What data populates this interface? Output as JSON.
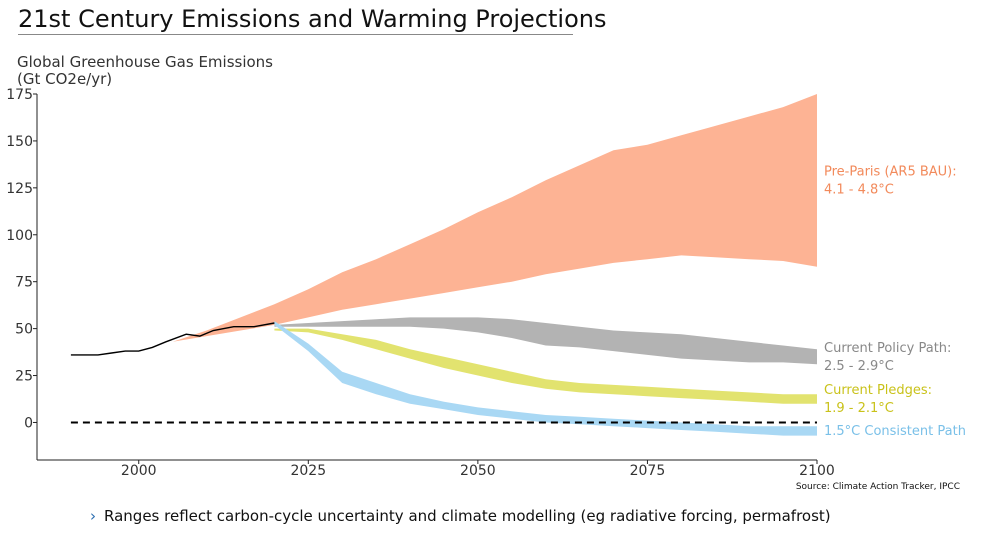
{
  "slide": {
    "title": "21st Century Emissions and Warming Projections",
    "bullet": "Ranges reflect carbon-cycle uncertainty and climate modelling (eg radiative forcing, permafrost)",
    "bullet_icon": "chevron-right-icon"
  },
  "chart_data": {
    "type": "area",
    "ylabel": [
      "Global Greenhouse Gas Emissions",
      "(Gt CO2e/yr)"
    ],
    "xlabel": "",
    "xlim": [
      1985,
      2100
    ],
    "ylim": [
      -20,
      175
    ],
    "xticks": [
      2000,
      2025,
      2050,
      2075,
      2100
    ],
    "yticks": [
      0,
      25,
      50,
      75,
      100,
      125,
      150,
      175
    ],
    "grid": false,
    "source": "Source: Climate Action Tracker, IPCC",
    "historical": {
      "color": "#000000",
      "x": [
        1990,
        1994,
        1996,
        1998,
        2000,
        2002,
        2004,
        2007,
        2009,
        2011,
        2014,
        2017,
        2020
      ],
      "y": [
        36,
        36,
        37,
        38,
        38,
        40,
        43,
        47,
        46,
        49,
        51,
        51,
        53
      ]
    },
    "zero_line": {
      "y": 0,
      "x_range": [
        1990,
        2100
      ],
      "style": "dashed"
    },
    "series": [
      {
        "name": "Pre-Paris (AR5 BAU):",
        "warming": "4.1 - 4.8°C",
        "color": "#fdb394",
        "label_color": "#f28a5b",
        "x": [
          2005,
          2010,
          2015,
          2020,
          2025,
          2030,
          2035,
          2040,
          2045,
          2050,
          2055,
          2060,
          2065,
          2070,
          2075,
          2080,
          2085,
          2090,
          2095,
          2100
        ],
        "low": [
          43,
          46,
          49,
          52,
          56,
          60,
          63,
          66,
          69,
          72,
          75,
          79,
          82,
          85,
          87,
          89,
          88,
          87,
          86,
          83
        ],
        "high": [
          43,
          49,
          56,
          63,
          71,
          80,
          87,
          95,
          103,
          112,
          120,
          129,
          137,
          145,
          148,
          153,
          158,
          163,
          168,
          175
        ]
      },
      {
        "name": "Current Policy Path:",
        "warming": "2.5 - 2.9°C",
        "color": "#b3b3b3",
        "label_color": "#888888",
        "x": [
          2020,
          2025,
          2030,
          2035,
          2040,
          2045,
          2050,
          2055,
          2060,
          2065,
          2070,
          2075,
          2080,
          2085,
          2090,
          2095,
          2100
        ],
        "low": [
          51,
          51,
          51,
          51,
          51,
          50,
          48,
          45,
          41,
          40,
          38,
          36,
          34,
          33,
          32,
          32,
          31
        ],
        "high": [
          52,
          53,
          54,
          55,
          56,
          56,
          56,
          55,
          53,
          51,
          49,
          48,
          47,
          45,
          43,
          41,
          39
        ]
      },
      {
        "name": "Current Pledges:",
        "warming": "1.9 - 2.1°C",
        "color": "#e2e36f",
        "label_color": "#c9c21a",
        "x": [
          2020,
          2025,
          2030,
          2035,
          2040,
          2045,
          2050,
          2055,
          2060,
          2065,
          2070,
          2075,
          2080,
          2085,
          2090,
          2095,
          2100
        ],
        "low": [
          49,
          48,
          44,
          39,
          34,
          29,
          25,
          21,
          18,
          16,
          15,
          14,
          13,
          12,
          11,
          10,
          10
        ],
        "high": [
          50,
          50,
          47,
          44,
          39,
          35,
          31,
          27,
          23,
          21,
          20,
          19,
          18,
          17,
          16,
          15,
          15
        ]
      },
      {
        "name": "1.5°C Consistent Path",
        "warming": "",
        "color": "#a9d8f4",
        "label_color": "#7ac0e8",
        "x": [
          2020,
          2025,
          2030,
          2035,
          2040,
          2045,
          2050,
          2055,
          2060,
          2065,
          2070,
          2075,
          2080,
          2085,
          2090,
          2095,
          2100
        ],
        "low": [
          52,
          38,
          21,
          15,
          10,
          7,
          4,
          2,
          0,
          -1,
          -2,
          -3,
          -4,
          -5,
          -6,
          -7,
          -7
        ],
        "high": [
          54,
          42,
          27,
          21,
          15,
          11,
          8,
          6,
          4,
          3,
          2,
          1,
          0,
          -1,
          -2,
          -2,
          -2
        ]
      }
    ]
  }
}
